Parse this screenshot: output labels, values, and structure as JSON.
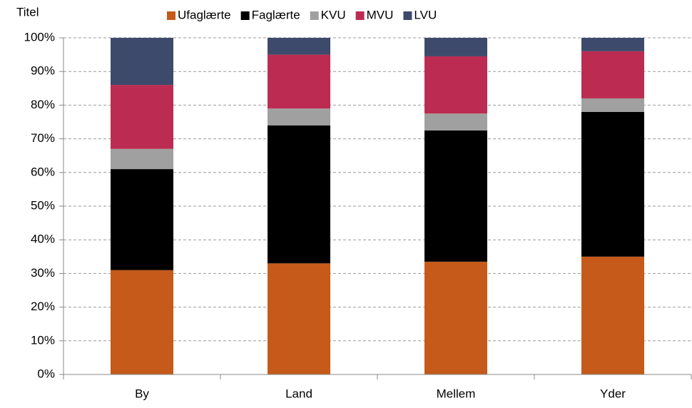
{
  "chart_data": {
    "type": "bar",
    "stacked": true,
    "title": "Titel",
    "categories": [
      "By",
      "Land",
      "Mellem",
      "Yder"
    ],
    "series": [
      {
        "name": "Ufaglærte",
        "color": "#c55a1a",
        "values": [
          31,
          33,
          33.5,
          35
        ]
      },
      {
        "name": "Faglærte",
        "color": "#000000",
        "values": [
          30,
          41,
          39,
          43
        ]
      },
      {
        "name": "KVU",
        "color": "#a0a0a0",
        "values": [
          6,
          5,
          5,
          4
        ]
      },
      {
        "name": "MVU",
        "color": "#bc2c52",
        "values": [
          19,
          16,
          17,
          14
        ]
      },
      {
        "name": "LVU",
        "color": "#3e4a6b",
        "values": [
          14,
          5,
          5.5,
          4
        ]
      }
    ],
    "ylim": [
      0,
      100
    ],
    "yticks": [
      {
        "value": 0,
        "label": "0%"
      },
      {
        "value": 10,
        "label": "10%"
      },
      {
        "value": 20,
        "label": "20%"
      },
      {
        "value": 30,
        "label": "30%"
      },
      {
        "value": 40,
        "label": "40%"
      },
      {
        "value": 50,
        "label": "50%"
      },
      {
        "value": 60,
        "label": "60%"
      },
      {
        "value": 70,
        "label": "70%"
      },
      {
        "value": 80,
        "label": "80%"
      },
      {
        "value": 90,
        "label": "90%"
      },
      {
        "value": 100,
        "label": "100%"
      }
    ],
    "grid": true,
    "legend": "top"
  }
}
